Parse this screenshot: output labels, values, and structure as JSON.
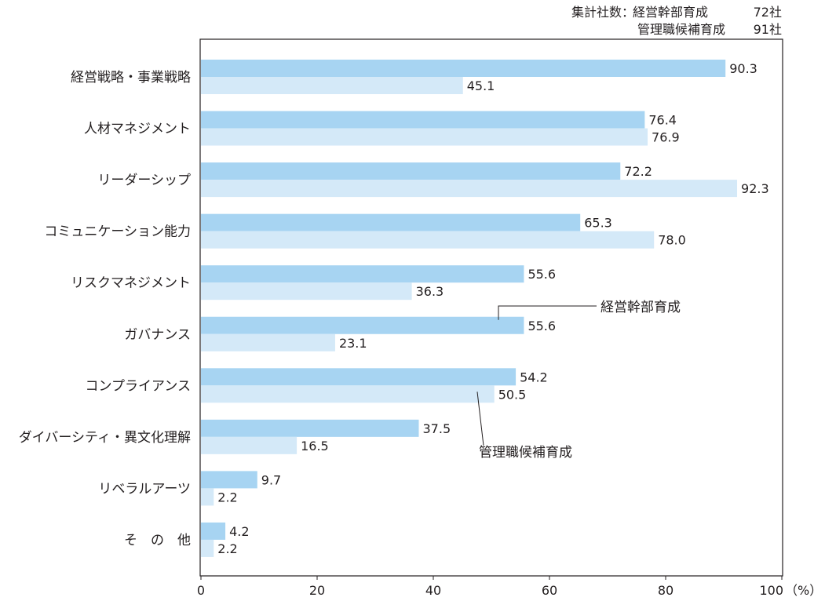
{
  "header": {
    "prefix": "集計社数：",
    "rows": [
      {
        "label": "経営幹部育成",
        "count": "72社"
      },
      {
        "label": "管理職候補育成",
        "count": "91社"
      }
    ]
  },
  "colors": {
    "series_exec": "#a7d4f2",
    "series_mgr": "#d4e9f8",
    "axis": "#231f20"
  },
  "chart_data": {
    "type": "bar",
    "orientation": "horizontal",
    "categories": [
      "経営戦略・事業戦略",
      "人材マネジメント",
      "リーダーシップ",
      "コミュニケーション能力",
      "リスクマネジメント",
      "ガバナンス",
      "コンプライアンス",
      "ダイバーシティ・異文化理解",
      "リベラルアーツ",
      "そ　の　他"
    ],
    "series": [
      {
        "name": "経営幹部育成",
        "values": [
          90.3,
          76.4,
          72.2,
          65.3,
          55.6,
          55.6,
          54.2,
          37.5,
          9.7,
          4.2
        ],
        "labels": [
          "90.3",
          "76.4",
          "72.2",
          "65.3",
          "55.6",
          "55.6",
          "54.2",
          "37.5",
          "9.7",
          "4.2"
        ]
      },
      {
        "name": "管理職候補育成",
        "values": [
          45.1,
          76.9,
          92.3,
          78.0,
          36.3,
          23.1,
          50.5,
          16.5,
          2.2,
          2.2
        ],
        "labels": [
          "45.1",
          "76.9",
          "92.3",
          "78.0",
          "36.3",
          "23.1",
          "50.5",
          "16.5",
          "2.2",
          "2.2"
        ]
      }
    ],
    "xlim": [
      0,
      100
    ],
    "xticks": [
      "0",
      "20",
      "40",
      "60",
      "80",
      "100"
    ],
    "xunit": "（%）",
    "annotations": [
      {
        "text": "経営幹部育成",
        "series": 0,
        "category": 5
      },
      {
        "text": "管理職候補育成",
        "series": 1,
        "category": 6
      }
    ]
  }
}
